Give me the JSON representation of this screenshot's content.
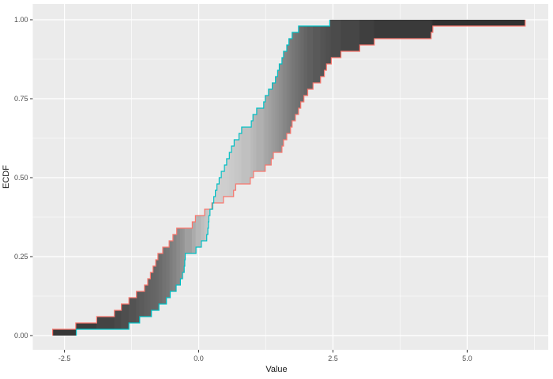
{
  "figure": {
    "background": "#ffffff",
    "panel_background": "#ebebeb",
    "gridline_color": "#ffffff"
  },
  "axes": {
    "x": {
      "title": "Value",
      "domain": [
        -3.09,
        6.51
      ],
      "major_ticks": [
        -2.5,
        0.0,
        2.5,
        5.0
      ],
      "major_tick_labels": [
        "-2.5",
        "0.0",
        "2.5",
        "5.0"
      ],
      "minor_ticks": [
        -1.25,
        1.25,
        3.75,
        6.25
      ],
      "tick_label_color": "#4d4d4d"
    },
    "y": {
      "title": "ECDF",
      "domain": [
        -0.045,
        1.05
      ],
      "major_ticks": [
        0.0,
        0.25,
        0.5,
        0.75,
        1.0
      ],
      "major_tick_labels": [
        "0.00",
        "0.25",
        "0.50",
        "0.75",
        "1.00"
      ],
      "minor_ticks": [
        0.125,
        0.375,
        0.625,
        0.875
      ],
      "tick_label_color": "#4d4d4d"
    }
  },
  "chart_data": {
    "type": "line",
    "subtype": "ecdf-step",
    "title": "",
    "xlabel": "Value",
    "ylabel": "ECDF",
    "legend": "none",
    "grid": "on",
    "step_size": 0.02,
    "series": [
      {
        "name": "ecdf-red",
        "color": "#F8766D",
        "n": 50,
        "x": [
          -2.72,
          -2.29,
          -1.9,
          -1.57,
          -1.44,
          -1.3,
          -1.16,
          -1.01,
          -0.95,
          -0.9,
          -0.85,
          -0.8,
          -0.76,
          -0.67,
          -0.55,
          -0.48,
          -0.41,
          -0.12,
          -0.06,
          0.11,
          0.245,
          0.46,
          0.65,
          0.69,
          0.96,
          1.02,
          1.24,
          1.35,
          1.39,
          1.55,
          1.58,
          1.64,
          1.71,
          1.74,
          1.8,
          1.86,
          1.9,
          1.96,
          2.03,
          2.13,
          2.27,
          2.34,
          2.38,
          2.47,
          2.65,
          3.0,
          3.27,
          4.33,
          4.36,
          6.08
        ]
      },
      {
        "name": "ecdf-cyan",
        "color": "#00BFC4",
        "n": 50,
        "x": [
          -2.28,
          -1.3,
          -1.1,
          -0.88,
          -0.74,
          -0.6,
          -0.53,
          -0.42,
          -0.34,
          -0.3,
          -0.27,
          -0.26,
          -0.25,
          -0.05,
          0.05,
          0.15,
          0.17,
          0.18,
          0.19,
          0.21,
          0.26,
          0.28,
          0.31,
          0.34,
          0.38,
          0.42,
          0.48,
          0.52,
          0.57,
          0.61,
          0.66,
          0.75,
          0.8,
          0.98,
          1.01,
          1.08,
          1.21,
          1.24,
          1.3,
          1.37,
          1.43,
          1.47,
          1.5,
          1.55,
          1.58,
          1.64,
          1.68,
          1.74,
          1.86,
          2.44
        ]
      }
    ],
    "ribbon": {
      "description": "area between the two ECDF step curves, shaded in gray bands per step interval; lightest near the curve crossing (~x=0.25), darkest at both tails",
      "crossing_point": {
        "x": 0.25,
        "ecdf": 0.42
      },
      "gradient_stops": [
        [
          -2.72,
          52
        ],
        [
          -2.3,
          56
        ],
        [
          -1.9,
          64
        ],
        [
          -1.55,
          72
        ],
        [
          -1.3,
          80
        ],
        [
          -1.0,
          94
        ],
        [
          -0.76,
          104
        ],
        [
          -0.55,
          120
        ],
        [
          -0.4,
          136
        ],
        [
          -0.2,
          158
        ],
        [
          0.0,
          182
        ],
        [
          0.25,
          208
        ],
        [
          0.5,
          206
        ],
        [
          0.8,
          196
        ],
        [
          1.0,
          186
        ],
        [
          1.25,
          168
        ],
        [
          1.45,
          150
        ],
        [
          1.65,
          130
        ],
        [
          1.85,
          112
        ],
        [
          2.05,
          96
        ],
        [
          2.3,
          84
        ],
        [
          2.45,
          78
        ],
        [
          2.7,
          72
        ],
        [
          3.0,
          66
        ],
        [
          3.3,
          60
        ],
        [
          4.3,
          56
        ],
        [
          4.4,
          52
        ],
        [
          5.0,
          48
        ],
        [
          6.08,
          46
        ]
      ]
    }
  }
}
